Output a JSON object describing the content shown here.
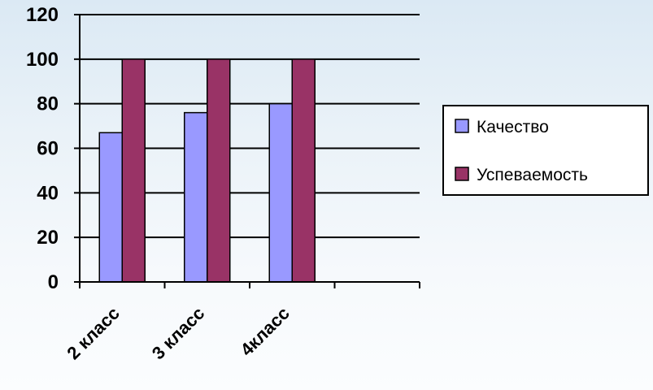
{
  "chart_data": {
    "type": "bar",
    "categories": [
      "2 класс",
      "3 класс",
      "4класс",
      ""
    ],
    "series": [
      {
        "name": "Качество",
        "color": "#9999ff",
        "values": [
          67,
          76,
          80,
          null
        ]
      },
      {
        "name": "Успеваемость",
        "color": "#993366",
        "values": [
          100,
          100,
          100,
          null
        ]
      }
    ],
    "ylim": [
      0,
      120
    ],
    "yticks": [
      0,
      20,
      40,
      60,
      80,
      100,
      120
    ],
    "grid": true,
    "legend_position": "right"
  }
}
